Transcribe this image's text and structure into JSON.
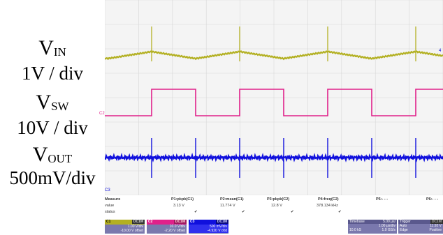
{
  "labels": {
    "vin_main": "V",
    "vin_sub": "IN",
    "vin_scale": "1V / div",
    "vsw_main": "V",
    "vsw_sub": "SW",
    "vsw_scale": "10V / div",
    "vout_main": "V",
    "vout_sub": "OUT",
    "vout_scale": "500mV/div"
  },
  "colors": {
    "c1": "#b3b022",
    "c2": "#e0208a",
    "c3": "#1010dd",
    "panel": "#7a78ad"
  },
  "channel_marks": {
    "c2": "C2",
    "c3": "C3",
    "right": "4"
  },
  "measure": {
    "headers": [
      "Measure",
      "P1:pkpk(C1)",
      "P2:mean(C1)",
      "P3:pkpk(C2)",
      "P4:freq(C2)",
      "P5:- - -",
      "P6:- - -"
    ],
    "value_label": "value",
    "values": [
      "3.13 V",
      "11.774 V",
      "12.8 V",
      "378.134 kHz"
    ],
    "status_label": "status",
    "status_mark": "✔"
  },
  "channels": [
    {
      "id": "C1",
      "badge": "DC1M",
      "line1": "1.00 V/div",
      "line2": "-10.00 V offset"
    },
    {
      "id": "C2",
      "badge": "DC1M",
      "line1": "10.0 V/div",
      "line2": "-2.20 V offset"
    },
    {
      "id": "C3",
      "badge": "DC1M",
      "line1": "500 mV/div",
      "line2": "-4.920 V ofst"
    }
  ],
  "timebase": {
    "label": "Timebase",
    "value1": "5.00 μs/",
    "value2": "1.00 μs/div",
    "sr": "10.0 kS",
    "sr2": "1.0 GS/s"
  },
  "trigger": {
    "label": "Trigger",
    "badge": "DC1M",
    "mode": "Auto",
    "level": "11.92 V",
    "type": "Edge",
    "slope": "Positive"
  }
}
